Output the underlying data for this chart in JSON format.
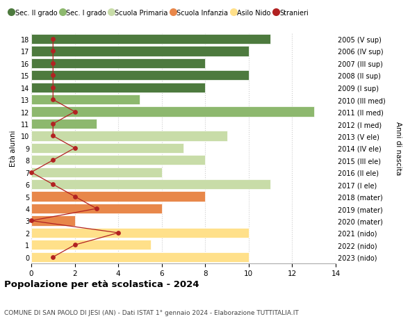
{
  "ages": [
    0,
    1,
    2,
    3,
    4,
    5,
    6,
    7,
    8,
    9,
    10,
    11,
    12,
    13,
    14,
    15,
    16,
    17,
    18
  ],
  "right_labels": [
    "2023 (nido)",
    "2022 (nido)",
    "2021 (nido)",
    "2020 (mater)",
    "2019 (mater)",
    "2018 (mater)",
    "2017 (I ele)",
    "2016 (II ele)",
    "2015 (III ele)",
    "2014 (IV ele)",
    "2013 (V ele)",
    "2012 (I med)",
    "2011 (II med)",
    "2010 (III med)",
    "2009 (I sup)",
    "2008 (II sup)",
    "2007 (III sup)",
    "2006 (IV sup)",
    "2005 (V sup)"
  ],
  "bar_values": [
    10,
    5.5,
    10,
    2,
    6,
    8,
    11,
    6,
    8,
    7,
    9,
    3,
    13,
    5,
    8,
    10,
    8,
    10,
    11
  ],
  "stranieri_values": [
    1,
    2,
    4,
    0,
    3,
    2,
    1,
    0,
    1,
    2,
    1,
    1,
    2,
    1,
    1,
    1,
    1,
    1,
    1
  ],
  "bar_colors": [
    "#FFE08A",
    "#FFE08A",
    "#FFE08A",
    "#E8874A",
    "#E8874A",
    "#E8874A",
    "#C8DCA8",
    "#C8DCA8",
    "#C8DCA8",
    "#C8DCA8",
    "#C8DCA8",
    "#8DB86E",
    "#8DB86E",
    "#8DB86E",
    "#4D7A3E",
    "#4D7A3E",
    "#4D7A3E",
    "#4D7A3E",
    "#4D7A3E"
  ],
  "legend_labels": [
    "Sec. II grado",
    "Sec. I grado",
    "Scuola Primaria",
    "Scuola Infanzia",
    "Asilo Nido",
    "Stranieri"
  ],
  "legend_colors": [
    "#4D7A3E",
    "#8DB86E",
    "#C8DCA8",
    "#E8874A",
    "#FFE08A",
    "#B22222"
  ],
  "title": "Popolazione per età scolastica - 2024",
  "subtitle": "COMUNE DI SAN PAOLO DI JESI (AN) - Dati ISTAT 1° gennaio 2024 - Elaborazione TUTTITALIA.IT",
  "ylabel": "Età alunni",
  "right_ylabel": "Anni di nascita",
  "xlim": [
    0,
    14
  ],
  "background_color": "#FFFFFF",
  "grid_color": "#CCCCCC",
  "stranieri_color": "#B22222",
  "bar_height": 0.82
}
